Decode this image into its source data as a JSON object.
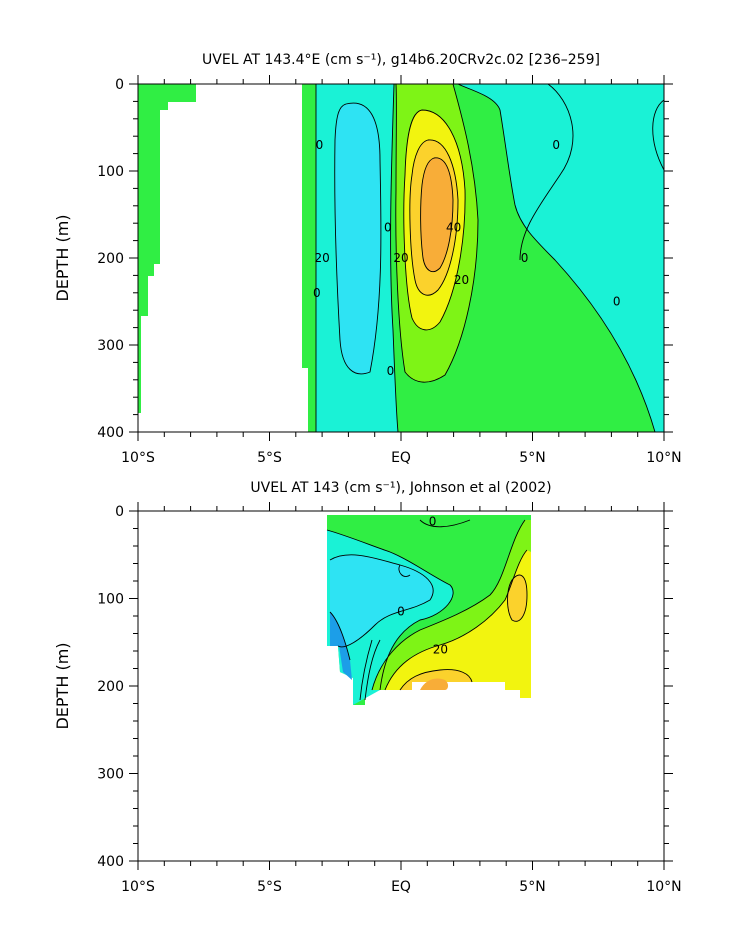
{
  "chart_data": [
    {
      "type": "contour",
      "title": "UVEL AT 143.4°E (cm s⁻¹), g14b6.20CRv2c.02 [236–259]",
      "ylabel": "DEPTH (m)",
      "xlabel": "",
      "xlim": [
        -10,
        10
      ],
      "ylim": [
        0,
        400
      ],
      "y_inverted": true,
      "x_ticks": [
        {
          "value": -10,
          "label": "10°S"
        },
        {
          "value": -5,
          "label": "5°S"
        },
        {
          "value": 0,
          "label": "EQ"
        },
        {
          "value": 5,
          "label": "5°N"
        },
        {
          "value": 10,
          "label": "10°N"
        }
      ],
      "y_ticks": [
        {
          "value": 0,
          "label": "0"
        },
        {
          "value": 100,
          "label": "100"
        },
        {
          "value": 200,
          "label": "200"
        },
        {
          "value": 300,
          "label": "300"
        },
        {
          "value": 400,
          "label": "400"
        }
      ],
      "contour_labels": [
        {
          "x": -3.1,
          "y": 70,
          "text": "0"
        },
        {
          "x": -3.0,
          "y": 200,
          "text": "20"
        },
        {
          "x": -3.2,
          "y": 240,
          "text": "0"
        },
        {
          "x": -0.5,
          "y": 165,
          "text": "0"
        },
        {
          "x": 0.0,
          "y": 200,
          "text": "20"
        },
        {
          "x": 2.0,
          "y": 165,
          "text": "40"
        },
        {
          "x": 2.3,
          "y": 225,
          "text": "20"
        },
        {
          "x": -0.4,
          "y": 330,
          "text": "0"
        },
        {
          "x": 5.9,
          "y": 70,
          "text": "0"
        },
        {
          "x": 4.7,
          "y": 200,
          "text": "0"
        },
        {
          "x": 8.2,
          "y": 250,
          "text": "0"
        }
      ],
      "fill_colors": {
        "strong_westward": "#1c9ee8",
        "westward": "#2ee3f3",
        "weak_westward": "#1af2d6",
        "weak_eastward": "#30ee44",
        "eastward": "#7ef416",
        "strong_eastward": "#f2f40f",
        "peak": "#fbd22c",
        "max": "#f8ad38"
      }
    },
    {
      "type": "contour",
      "title": "UVEL AT 143 (cm s⁻¹), Johnson et al (2002)",
      "ylabel": "DEPTH (m)",
      "xlabel": "",
      "xlim": [
        -10,
        10
      ],
      "ylim": [
        0,
        400
      ],
      "y_inverted": true,
      "x_ticks": [
        {
          "value": -10,
          "label": "10°S"
        },
        {
          "value": -5,
          "label": "5°S"
        },
        {
          "value": 0,
          "label": "EQ"
        },
        {
          "value": 5,
          "label": "5°N"
        },
        {
          "value": 10,
          "label": "10°N"
        }
      ],
      "y_ticks": [
        {
          "value": 0,
          "label": "0"
        },
        {
          "value": 100,
          "label": "100"
        },
        {
          "value": 200,
          "label": "200"
        },
        {
          "value": 300,
          "label": "300"
        },
        {
          "value": 400,
          "label": "400"
        }
      ],
      "contour_labels": [
        {
          "x": 1.2,
          "y": 12,
          "text": "0"
        },
        {
          "x": 0.0,
          "y": 115,
          "text": "0"
        },
        {
          "x": 1.5,
          "y": 158,
          "text": "20"
        }
      ]
    }
  ]
}
